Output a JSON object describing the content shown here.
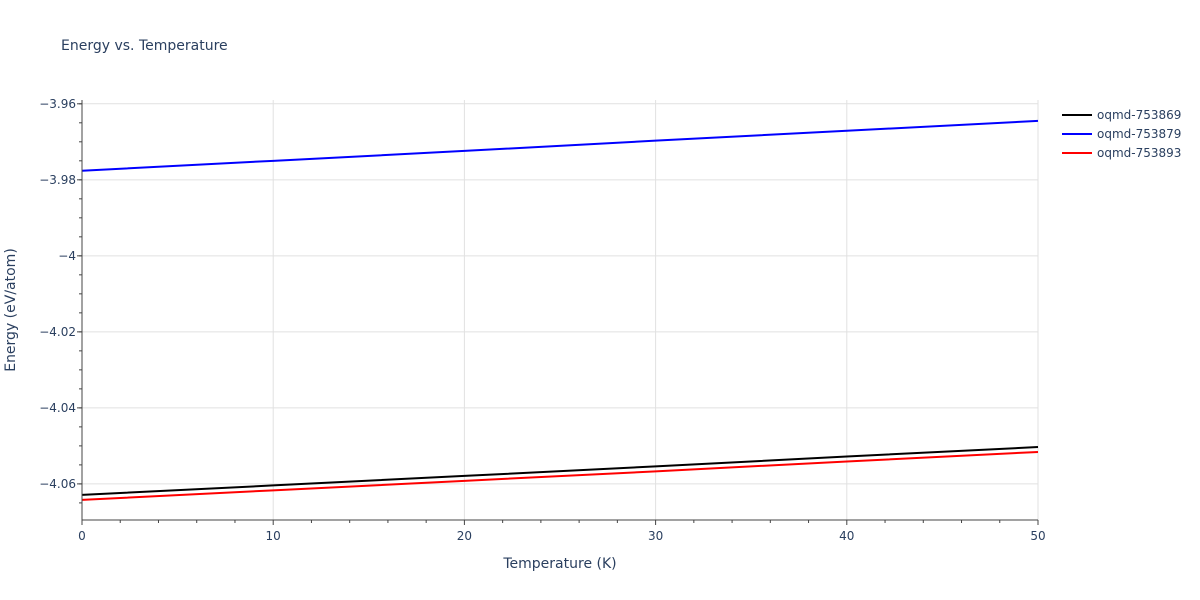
{
  "chart_data": {
    "type": "line",
    "title": "Energy vs. Temperature",
    "xlabel": "Temperature (K)",
    "ylabel": "Energy (eV/atom)",
    "xlim": [
      0,
      50
    ],
    "ylim": [
      -4.0695,
      -3.959
    ],
    "x_ticks": [
      0,
      10,
      20,
      30,
      40,
      50
    ],
    "x_tick_labels": [
      "0",
      "10",
      "20",
      "30",
      "40",
      "50"
    ],
    "y_ticks": [
      -3.96,
      -3.98,
      -4.0,
      -4.02,
      -4.04,
      -4.06
    ],
    "y_tick_labels": [
      "−3.96",
      "−3.98",
      "−4",
      "−4.02",
      "−4.04",
      "−4.06"
    ],
    "grid": true,
    "legend_position": "right-top",
    "x": [
      0,
      10,
      20,
      30,
      40,
      50
    ],
    "series": [
      {
        "name": "oqmd-753869",
        "color": "#000000",
        "values": [
          -4.0629,
          -4.0604,
          -4.0579,
          -4.0554,
          -4.0528,
          -4.0503
        ]
      },
      {
        "name": "oqmd-753879",
        "color": "#0000ff",
        "values": [
          -3.9776,
          -3.975,
          -3.9724,
          -3.9697,
          -3.9671,
          -3.9645
        ]
      },
      {
        "name": "oqmd-753893",
        "color": "#ff0000",
        "values": [
          -4.0642,
          -4.0617,
          -4.0592,
          -4.0567,
          -4.0541,
          -4.0516
        ]
      }
    ]
  }
}
